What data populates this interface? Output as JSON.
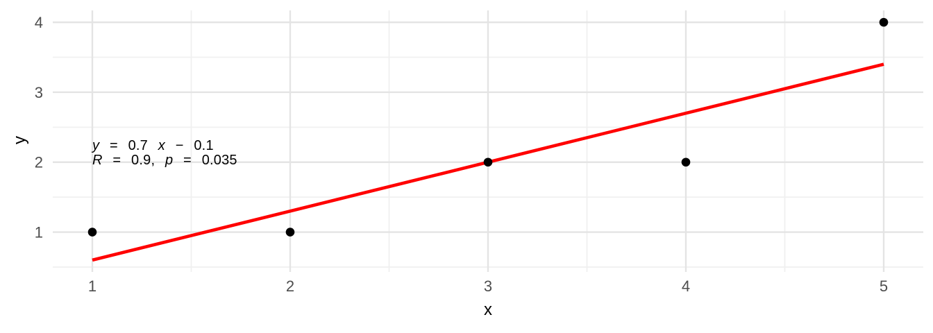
{
  "chart_data": {
    "type": "scatter",
    "title": "",
    "xlabel": "x",
    "ylabel": "y",
    "points": {
      "x": [
        1,
        2,
        3,
        4,
        5
      ],
      "y": [
        1,
        1,
        2,
        2,
        4
      ]
    },
    "x_ticks": [
      1,
      2,
      3,
      4,
      5
    ],
    "y_ticks": [
      1,
      2,
      3,
      4
    ],
    "xlim": [
      0.8,
      5.2
    ],
    "ylim": [
      0.43,
      4.17
    ],
    "grid": true,
    "legend_position": "none",
    "regression": {
      "slope": 0.7,
      "intercept": -0.1,
      "x_start": 1,
      "x_end": 5,
      "equation_text": "y = 0.7 x − 0.1",
      "stats_text": "R = 0.9, p = 0.035"
    },
    "annotation": {
      "equation_segments": [
        {
          "text": "y",
          "italic": true
        },
        {
          "text": " = 0.7 ",
          "italic": false
        },
        {
          "text": "x",
          "italic": true
        },
        {
          "text": " − 0.1",
          "italic": false
        }
      ],
      "stats_segments": [
        {
          "text": "R",
          "italic": true
        },
        {
          "text": " = 0.9, ",
          "italic": false
        },
        {
          "text": "p",
          "italic": true
        },
        {
          "text": " = 0.035",
          "italic": false
        }
      ]
    },
    "colors": {
      "background": "#FFFFFF",
      "point": "#000000",
      "regression_line": "#FF0000",
      "grid_major": "#E4E4E4",
      "grid_minor": "#F0F0F0",
      "tick_text": "#4D4D4D",
      "axis_title": "#000000"
    }
  }
}
